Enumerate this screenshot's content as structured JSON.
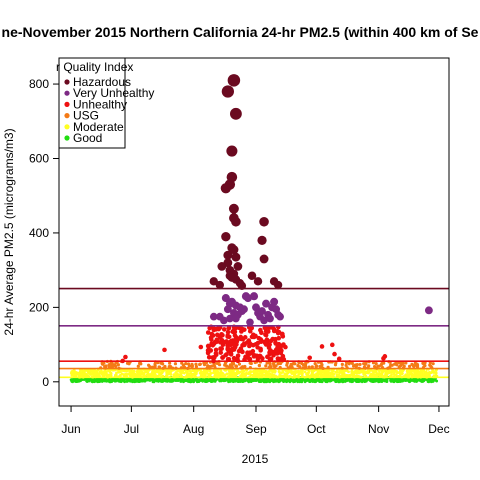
{
  "chart_data": {
    "type": "scatter",
    "title": "ne-November 2015 Northern California 24-hr PM2.5 (within 400 km of Se",
    "xlabel": "2015",
    "ylabel": "24-hr Average PM2.5 (micrograms/m3)",
    "xlim": [
      "2015-05-26",
      "2015-12-06"
    ],
    "ylim": [
      -65,
      870
    ],
    "x_ticks": [
      {
        "date": "2015-06-01",
        "label": "Jun"
      },
      {
        "date": "2015-07-01",
        "label": "Jul"
      },
      {
        "date": "2015-08-01",
        "label": "Aug"
      },
      {
        "date": "2015-09-01",
        "label": "Sep"
      },
      {
        "date": "2015-10-01",
        "label": "Oct"
      },
      {
        "date": "2015-11-01",
        "label": "Nov"
      },
      {
        "date": "2015-12-01",
        "label": "Dec"
      }
    ],
    "y_ticks": [
      0,
      200,
      400,
      600,
      800
    ],
    "grid": false,
    "legend": {
      "title": "r Quality Index",
      "position": "top-left",
      "entries": [
        {
          "label": "Hazardous",
          "color": "#6b0a20"
        },
        {
          "label": "Very Unhealthy",
          "color": "#7d2a84"
        },
        {
          "label": "Unhealthy",
          "color": "#ee1111"
        },
        {
          "label": "USG",
          "color": "#f47a16"
        },
        {
          "label": "Moderate",
          "color": "#ffff22"
        },
        {
          "label": "Good",
          "color": "#22dd11"
        }
      ]
    },
    "thresholds": [
      {
        "value": 12,
        "color": "#ffff22"
      },
      {
        "value": 35.5,
        "color": "#f47a16"
      },
      {
        "value": 55.5,
        "color": "#ee1111"
      },
      {
        "value": 150.5,
        "color": "#7d2a84"
      },
      {
        "value": 250.5,
        "color": "#6b0a20"
      }
    ],
    "series": [
      {
        "aqi": "Hazardous",
        "points": [
          [
            "2015-08-21",
            810
          ],
          [
            "2015-08-18",
            780
          ],
          [
            "2015-08-22",
            720
          ],
          [
            "2015-08-20",
            620
          ],
          [
            "2015-08-20",
            550
          ],
          [
            "2015-08-19",
            530
          ],
          [
            "2015-08-17",
            520
          ],
          [
            "2015-08-21",
            465
          ],
          [
            "2015-08-21",
            440
          ],
          [
            "2015-08-22",
            430
          ],
          [
            "2015-09-05",
            430
          ],
          [
            "2015-08-17",
            390
          ],
          [
            "2015-09-04",
            380
          ],
          [
            "2015-08-20",
            360
          ],
          [
            "2015-08-21",
            355
          ],
          [
            "2015-08-18",
            340
          ],
          [
            "2015-08-22",
            335
          ],
          [
            "2015-09-05",
            330
          ],
          [
            "2015-08-18",
            320
          ],
          [
            "2015-08-15",
            310
          ],
          [
            "2015-08-23",
            310
          ],
          [
            "2015-08-19",
            300
          ],
          [
            "2015-08-21",
            290
          ],
          [
            "2015-08-19",
            285
          ],
          [
            "2015-08-30",
            285
          ],
          [
            "2015-08-20",
            280
          ],
          [
            "2015-08-22",
            275
          ],
          [
            "2015-09-10",
            270
          ],
          [
            "2015-08-11",
            270
          ],
          [
            "2015-08-24",
            265
          ],
          [
            "2015-09-02",
            270
          ],
          [
            "2015-08-14",
            260
          ],
          [
            "2015-09-12",
            260
          ],
          [
            "2015-08-25",
            258
          ]
        ]
      },
      {
        "aqi": "Very Unhealthy",
        "points": [
          [
            "2015-08-17",
            225
          ],
          [
            "2015-08-20",
            215
          ],
          [
            "2015-08-19",
            210
          ],
          [
            "2015-08-22",
            205
          ],
          [
            "2015-08-24",
            200
          ],
          [
            "2015-08-18",
            195
          ],
          [
            "2015-08-25",
            190
          ],
          [
            "2015-08-21",
            185
          ],
          [
            "2015-08-26",
            195
          ],
          [
            "2015-08-23",
            180
          ],
          [
            "2015-08-27",
            230
          ],
          [
            "2015-08-28",
            225
          ],
          [
            "2015-09-01",
            200
          ],
          [
            "2015-09-02",
            185
          ],
          [
            "2015-09-03",
            175
          ],
          [
            "2015-09-04",
            190
          ],
          [
            "2015-09-06",
            210
          ],
          [
            "2015-09-07",
            180
          ],
          [
            "2015-09-08",
            170
          ],
          [
            "2015-09-09",
            200
          ],
          [
            "2015-09-10",
            215
          ],
          [
            "2015-09-11",
            195
          ],
          [
            "2015-09-12",
            180
          ],
          [
            "2015-09-13",
            175
          ],
          [
            "2015-08-31",
            230
          ],
          [
            "2015-08-16",
            165
          ],
          [
            "2015-08-11",
            175
          ],
          [
            "2015-08-14",
            175
          ],
          [
            "2015-08-29",
            160
          ],
          [
            "2015-09-05",
            165
          ],
          [
            "2015-08-19",
            170
          ],
          [
            "2015-08-22",
            170
          ],
          [
            "2015-11-26",
            192
          ]
        ]
      }
    ],
    "bands": [
      {
        "aqi": "Unhealthy",
        "start": "2015-08-08",
        "end": "2015-09-15",
        "min": 56,
        "max": 148,
        "count": 220
      },
      {
        "aqi": "Unhealthy",
        "start": "2015-06-21",
        "end": "2015-11-27",
        "min": 56,
        "max": 100,
        "count": 14
      },
      {
        "aqi": "USG",
        "start": "2015-06-15",
        "end": "2015-11-30",
        "min": 36,
        "max": 55,
        "count": 260
      },
      {
        "aqi": "Moderate",
        "start": "2015-06-01",
        "end": "2015-11-30",
        "min": 12.1,
        "max": 35,
        "count": 1100
      },
      {
        "aqi": "Good",
        "start": "2015-06-01",
        "end": "2015-11-30",
        "min": 0,
        "max": 12,
        "count": 1300
      }
    ]
  }
}
